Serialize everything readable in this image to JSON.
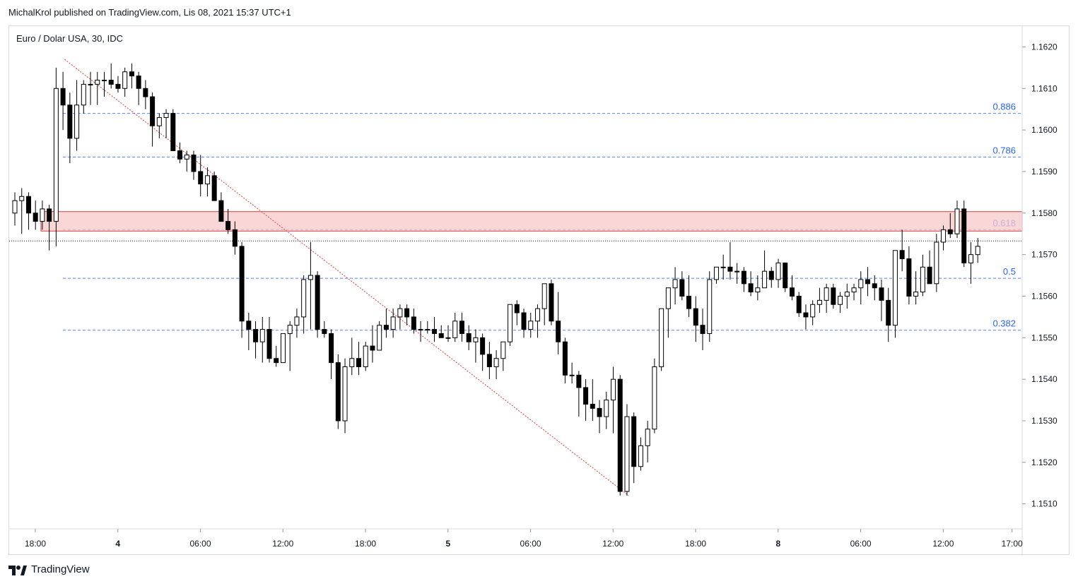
{
  "header": {
    "published_text": "MichalKrol published on TradingView.com, Lis 08, 2021 15:37 UTC+1"
  },
  "footer": {
    "brand": "TradingView"
  },
  "colors": {
    "candle_down": "#000000",
    "candle_up": "#ffffff",
    "wick": "#000000",
    "fib_line": "#2962ff",
    "fib_label": "#2962ff",
    "zone_fill": "#f8c9c9",
    "zone_border": "#e05a5a",
    "trend_line": "#e53935",
    "grid_axis": "#d6d9de",
    "text": "#131722"
  },
  "chart_data": {
    "type": "candlestick",
    "title": "Euro / Dolar USA, 30, IDC",
    "ylim": [
      1.1504,
      1.1625
    ],
    "y_ticks": [
      "1.1620",
      "1.1610",
      "1.1600",
      "1.1590",
      "1.1580",
      "1.1570",
      "1.1560",
      "1.1550",
      "1.1540",
      "1.1530",
      "1.1520",
      "1.1510"
    ],
    "x_ticks": [
      {
        "label": "18:00",
        "bar": 0
      },
      {
        "label": "4",
        "bar": 12
      },
      {
        "label": "06:00",
        "bar": 24
      },
      {
        "label": "12:00",
        "bar": 36
      },
      {
        "label": "18:00",
        "bar": 48
      },
      {
        "label": "5",
        "bar": 60
      },
      {
        "label": "06:00",
        "bar": 72
      },
      {
        "label": "12:00",
        "bar": 84
      },
      {
        "label": "18:00",
        "bar": 96
      },
      {
        "label": "8",
        "bar": 108
      },
      {
        "label": "06:00",
        "bar": 120
      },
      {
        "label": "12:00",
        "bar": 132
      },
      {
        "label": "17:00",
        "bar": 142
      }
    ],
    "ohlc": [
      [
        1.158,
        1.1585,
        1.1577,
        1.1583
      ],
      [
        1.1583,
        1.1586,
        1.1575,
        1.1584
      ],
      [
        1.1584,
        1.1585,
        1.1576,
        1.158
      ],
      [
        1.158,
        1.1583,
        1.1576,
        1.1578
      ],
      [
        1.1578,
        1.1583,
        1.1576,
        1.1581
      ],
      [
        1.1581,
        1.1582,
        1.1571,
        1.1578
      ],
      [
        1.1578,
        1.1615,
        1.1572,
        1.161
      ],
      [
        1.161,
        1.1614,
        1.16,
        1.1606
      ],
      [
        1.1606,
        1.1609,
        1.1592,
        1.1598
      ],
      [
        1.1598,
        1.1612,
        1.1595,
        1.1606
      ],
      [
        1.1606,
        1.1612,
        1.1604,
        1.1611
      ],
      [
        1.1611,
        1.1614,
        1.1606,
        1.1611
      ],
      [
        1.1611,
        1.1614,
        1.1606,
        1.1612
      ],
      [
        1.1612,
        1.1614,
        1.1608,
        1.1612
      ],
      [
        1.1612,
        1.1616,
        1.161,
        1.1611
      ],
      [
        1.1611,
        1.1613,
        1.1609,
        1.161
      ],
      [
        1.161,
        1.1615,
        1.1608,
        1.1614
      ],
      [
        1.1614,
        1.1616,
        1.161,
        1.1613
      ],
      [
        1.1613,
        1.1614,
        1.1606,
        1.161
      ],
      [
        1.161,
        1.1612,
        1.1605,
        1.1608
      ],
      [
        1.1608,
        1.1609,
        1.1596,
        1.1601
      ],
      [
        1.1601,
        1.1604,
        1.1598,
        1.1603
      ],
      [
        1.1603,
        1.1605,
        1.1598,
        1.1604
      ],
      [
        1.1604,
        1.1605,
        1.1595,
        1.1595
      ],
      [
        1.1595,
        1.1597,
        1.1592,
        1.1593
      ],
      [
        1.1593,
        1.1595,
        1.159,
        1.1594
      ],
      [
        1.1594,
        1.1595,
        1.1588,
        1.159
      ],
      [
        1.159,
        1.1594,
        1.1584,
        1.1587
      ],
      [
        1.1587,
        1.1591,
        1.1584,
        1.1589
      ],
      [
        1.1589,
        1.159,
        1.1583,
        1.1583
      ],
      [
        1.1583,
        1.1585,
        1.1578,
        1.1578
      ],
      [
        1.1578,
        1.1581,
        1.1575,
        1.1576
      ],
      [
        1.1576,
        1.1578,
        1.157,
        1.1572
      ],
      [
        1.1572,
        1.1573,
        1.155,
        1.1554
      ],
      [
        1.1554,
        1.1556,
        1.1547,
        1.1552
      ],
      [
        1.1552,
        1.1554,
        1.1545,
        1.1549
      ],
      [
        1.1549,
        1.1555,
        1.1544,
        1.1552
      ],
      [
        1.1552,
        1.1555,
        1.1544,
        1.1545
      ],
      [
        1.1545,
        1.1548,
        1.1543,
        1.1544
      ],
      [
        1.1544,
        1.1551,
        1.1545,
        1.1551
      ],
      [
        1.1551,
        1.1554,
        1.1542,
        1.1553
      ],
      [
        1.1553,
        1.1557,
        1.155,
        1.1555
      ],
      [
        1.1555,
        1.1565,
        1.1551,
        1.1564
      ],
      [
        1.1564,
        1.1573,
        1.1552,
        1.1565
      ],
      [
        1.1565,
        1.1566,
        1.155,
        1.1552
      ],
      [
        1.1552,
        1.1554,
        1.155,
        1.1551
      ],
      [
        1.1551,
        1.1552,
        1.154,
        1.1544
      ],
      [
        1.1544,
        1.1546,
        1.1528,
        1.153
      ],
      [
        1.153,
        1.1545,
        1.1527,
        1.1543
      ],
      [
        1.1543,
        1.155,
        1.1541,
        1.1545
      ],
      [
        1.1545,
        1.1549,
        1.1541,
        1.1543
      ],
      [
        1.1543,
        1.1549,
        1.1542,
        1.1548
      ],
      [
        1.1548,
        1.1553,
        1.1544,
        1.1547
      ],
      [
        1.1547,
        1.1554,
        1.1548,
        1.1553
      ],
      [
        1.1553,
        1.1557,
        1.155,
        1.1552
      ],
      [
        1.1552,
        1.1557,
        1.155,
        1.1555
      ],
      [
        1.1555,
        1.1558,
        1.1552,
        1.1557
      ],
      [
        1.1557,
        1.1558,
        1.1553,
        1.1555
      ],
      [
        1.1555,
        1.1557,
        1.1551,
        1.1552
      ],
      [
        1.1552,
        1.1554,
        1.1549,
        1.1552
      ],
      [
        1.1552,
        1.1554,
        1.1551,
        1.1552
      ],
      [
        1.1552,
        1.1555,
        1.1549,
        1.1551
      ],
      [
        1.1551,
        1.1553,
        1.155,
        1.155
      ],
      [
        1.155,
        1.1553,
        1.1549,
        1.155
      ],
      [
        1.155,
        1.1556,
        1.1549,
        1.1554
      ],
      [
        1.1554,
        1.1556,
        1.1549,
        1.1551
      ],
      [
        1.1551,
        1.1553,
        1.1547,
        1.1549
      ],
      [
        1.1549,
        1.1552,
        1.1544,
        1.155
      ],
      [
        1.155,
        1.1551,
        1.1542,
        1.1546
      ],
      [
        1.1546,
        1.1549,
        1.154,
        1.1543
      ],
      [
        1.1543,
        1.1547,
        1.154,
        1.1545
      ],
      [
        1.1545,
        1.1549,
        1.1542,
        1.1549
      ],
      [
        1.1549,
        1.1558,
        1.1548,
        1.1558
      ],
      [
        1.1558,
        1.1559,
        1.1553,
        1.1556
      ],
      [
        1.1556,
        1.1557,
        1.155,
        1.1552
      ],
      [
        1.1552,
        1.1556,
        1.155,
        1.1554
      ],
      [
        1.1554,
        1.1558,
        1.155,
        1.1557
      ],
      [
        1.1557,
        1.1563,
        1.1553,
        1.1563
      ],
      [
        1.1563,
        1.1564,
        1.1553,
        1.1554
      ],
      [
        1.1554,
        1.1561,
        1.1546,
        1.1549
      ],
      [
        1.1549,
        1.155,
        1.1539,
        1.1541
      ],
      [
        1.1541,
        1.1544,
        1.1539,
        1.1541
      ],
      [
        1.1541,
        1.1542,
        1.1531,
        1.1538
      ],
      [
        1.1538,
        1.154,
        1.153,
        1.1534
      ],
      [
        1.1534,
        1.154,
        1.153,
        1.1533
      ],
      [
        1.1533,
        1.1535,
        1.1527,
        1.1531
      ],
      [
        1.1531,
        1.1537,
        1.1528,
        1.1535
      ],
      [
        1.1535,
        1.1543,
        1.1527,
        1.154
      ],
      [
        1.154,
        1.1541,
        1.1512,
        1.1513
      ],
      [
        1.1513,
        1.1534,
        1.1512,
        1.1531
      ],
      [
        1.1531,
        1.1532,
        1.1515,
        1.1519
      ],
      [
        1.1519,
        1.1526,
        1.1518,
        1.1524
      ],
      [
        1.1524,
        1.153,
        1.152,
        1.1528
      ],
      [
        1.1528,
        1.1545,
        1.1527,
        1.1543
      ],
      [
        1.1543,
        1.1557,
        1.1542,
        1.1557
      ],
      [
        1.1557,
        1.1562,
        1.155,
        1.1562
      ],
      [
        1.1562,
        1.1567,
        1.1558,
        1.1564
      ],
      [
        1.1564,
        1.1566,
        1.1559,
        1.156
      ],
      [
        1.156,
        1.1565,
        1.1555,
        1.1557
      ],
      [
        1.1557,
        1.156,
        1.1549,
        1.1553
      ],
      [
        1.1553,
        1.1557,
        1.1547,
        1.1551
      ],
      [
        1.1551,
        1.1566,
        1.1549,
        1.1564
      ],
      [
        1.1564,
        1.1567,
        1.1563,
        1.1567
      ],
      [
        1.1567,
        1.157,
        1.1564,
        1.1567
      ],
      [
        1.1567,
        1.1573,
        1.1564,
        1.1566
      ],
      [
        1.1566,
        1.1568,
        1.1563,
        1.1566
      ],
      [
        1.1566,
        1.1567,
        1.1561,
        1.1563
      ],
      [
        1.1563,
        1.1566,
        1.156,
        1.1561
      ],
      [
        1.1561,
        1.1565,
        1.1559,
        1.1562
      ],
      [
        1.1562,
        1.1571,
        1.1563,
        1.1566
      ],
      [
        1.1566,
        1.1567,
        1.1562,
        1.1564
      ],
      [
        1.1564,
        1.1569,
        1.1562,
        1.1568
      ],
      [
        1.1568,
        1.1567,
        1.1561,
        1.1562
      ],
      [
        1.1562,
        1.1565,
        1.1559,
        1.156
      ],
      [
        1.156,
        1.1561,
        1.1555,
        1.1556
      ],
      [
        1.1556,
        1.1558,
        1.1552,
        1.1555
      ],
      [
        1.1555,
        1.1559,
        1.1553,
        1.1558
      ],
      [
        1.1558,
        1.1562,
        1.1556,
        1.1559
      ],
      [
        1.1559,
        1.1563,
        1.1556,
        1.1562
      ],
      [
        1.1562,
        1.1563,
        1.1557,
        1.1558
      ],
      [
        1.1558,
        1.1561,
        1.1556,
        1.156
      ],
      [
        1.156,
        1.1563,
        1.1557,
        1.1561
      ],
      [
        1.1561,
        1.1563,
        1.1559,
        1.1562
      ],
      [
        1.1562,
        1.1566,
        1.1558,
        1.1564
      ],
      [
        1.1564,
        1.1567,
        1.156,
        1.1563
      ],
      [
        1.1563,
        1.1565,
        1.1559,
        1.1562
      ],
      [
        1.1562,
        1.1564,
        1.1554,
        1.1559
      ],
      [
        1.1559,
        1.1562,
        1.1549,
        1.1553
      ],
      [
        1.1553,
        1.1571,
        1.155,
        1.1571
      ],
      [
        1.1571,
        1.1576,
        1.1566,
        1.1569
      ],
      [
        1.1569,
        1.1572,
        1.1558,
        1.156
      ],
      [
        1.156,
        1.1566,
        1.1558,
        1.1561
      ],
      [
        1.1561,
        1.157,
        1.156,
        1.1567
      ],
      [
        1.1567,
        1.1571,
        1.1563,
        1.1563
      ],
      [
        1.1563,
        1.1575,
        1.1561,
        1.1573
      ],
      [
        1.1573,
        1.1577,
        1.1571,
        1.1576
      ],
      [
        1.1576,
        1.158,
        1.1574,
        1.1575
      ],
      [
        1.1575,
        1.1583,
        1.1574,
        1.1581
      ],
      [
        1.1581,
        1.1583,
        1.1567,
        1.1568
      ],
      [
        1.1568,
        1.1573,
        1.1563,
        1.157
      ],
      [
        1.157,
        1.1574,
        1.1568,
        1.1572
      ]
    ],
    "fib_levels": [
      {
        "label": "0.886",
        "value": 1.1604
      },
      {
        "label": "0.786",
        "value": 1.15935
      },
      {
        "label": "0.618",
        "value": 1.1576
      },
      {
        "label": "0.5",
        "value": 1.15643
      },
      {
        "label": "0.382",
        "value": 1.15518
      }
    ],
    "resistance_zone": {
      "low": 1.1576,
      "high": 1.1579
    },
    "last_price": 1.15733,
    "trend_line": {
      "from_bar": 6,
      "from_price": 1.1617,
      "to_bar": 88,
      "to_price": 1.1512
    }
  }
}
